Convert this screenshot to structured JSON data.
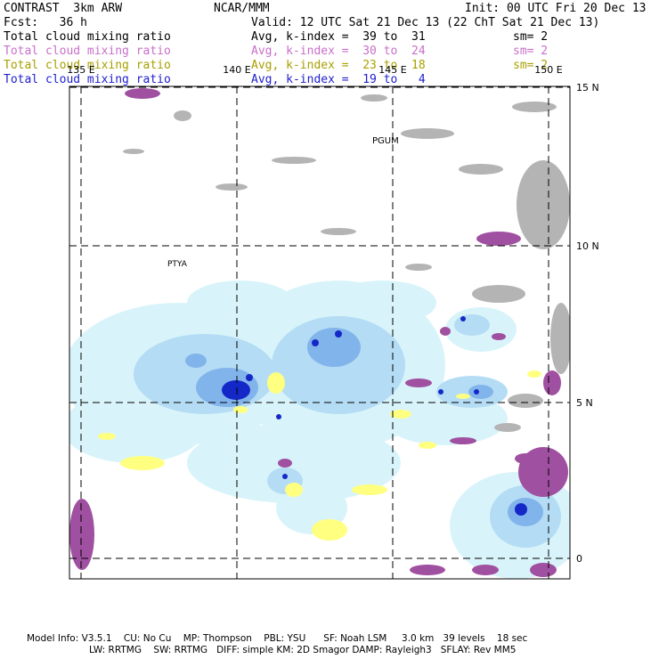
{
  "header": {
    "title": "CONTRAST  3km ARW",
    "org": "NCAR/MMM",
    "init": "Init: 00 UTC Fri 20 Dec 13",
    "fcst": "Fcst:   36 h",
    "valid": "Valid: 12 UTC Sat 21 Dec 13 (22 ChT Sat 21 Dec 13)"
  },
  "legend": [
    {
      "field": "Total cloud mixing ratio",
      "range": "Avg, k-index =  39 to  31",
      "sm": "sm= 2",
      "color": "#000000"
    },
    {
      "field": "Total cloud mixing ratio",
      "range": "Avg, k-index =  30 to  24",
      "sm": "sm= 2",
      "color": "#c86fc8"
    },
    {
      "field": "Total cloud mixing ratio",
      "range": "Avg, k-index =  23 to  18",
      "sm": "sm= 2",
      "color": "#a8a000"
    },
    {
      "field": "Total cloud mixing ratio",
      "range": "Avg, k-index =  19 to   4",
      "sm": "",
      "color": "#2020d0"
    }
  ],
  "map": {
    "lon_labels": [
      "135 E",
      "140 E",
      "145 E",
      "150 E"
    ],
    "lat_labels": [
      "15 N",
      "10 N",
      "5 N",
      "0"
    ],
    "places": [
      "PGUM",
      "PTYA"
    ],
    "colors": {
      "gray": "#b4b4b4",
      "purple": "#a050a0",
      "yellow": "#ffff80",
      "light_cyan": "#d8f4fa",
      "light_blue": "#b4dcf4",
      "mid_blue": "#82b4ec",
      "blue": "#3c5ae6",
      "dark_blue": "#1428c8"
    }
  },
  "footer": {
    "line1": "Model Info: V3.5.1    CU: No Cu    MP: Thompson    PBL: YSU      SF: Noah LSM     3.0 km   39 levels    18 sec",
    "line2": "LW: RRTMG    SW: RRTMG   DIFF: simple KM: 2D Smagor DAMP: Rayleigh3   SFLAY: Rev MM5"
  }
}
